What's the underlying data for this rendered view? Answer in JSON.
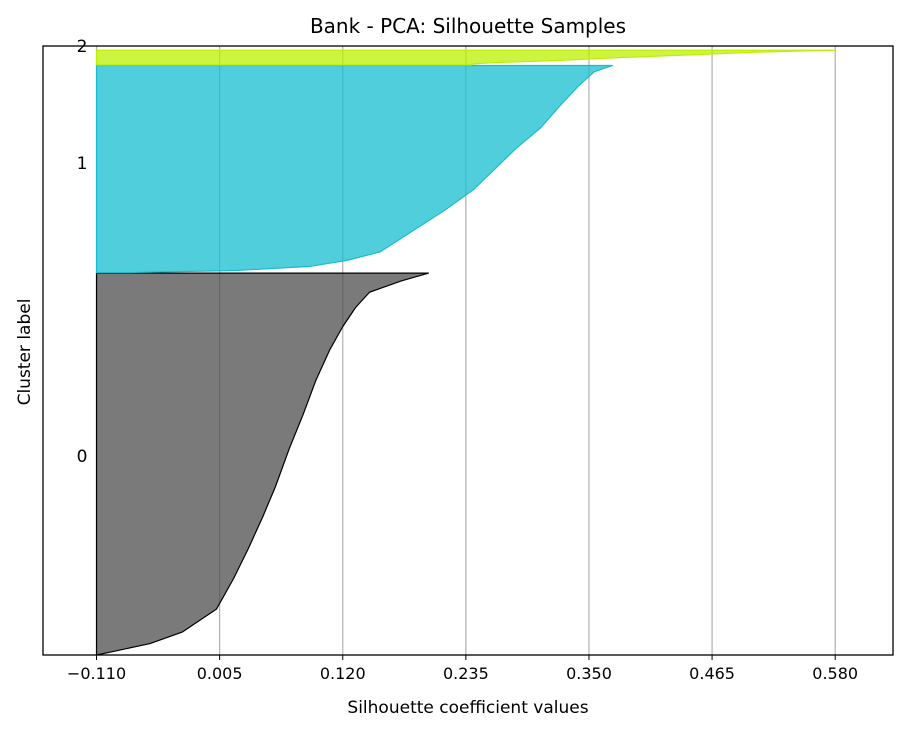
{
  "chart_data": {
    "type": "area",
    "title": "Bank - PCA: Silhouette Samples",
    "xlabel": "Silhouette coefficient values",
    "ylabel": "Cluster label",
    "xlim": [
      -0.16,
      0.634
    ],
    "x_ticks": [
      "−0.110",
      "0.005",
      "0.120",
      "0.235",
      "0.350",
      "0.465",
      "0.580"
    ],
    "x_tick_values": [
      -0.11,
      0.005,
      0.12,
      0.235,
      0.35,
      0.465,
      0.58
    ],
    "grid": "vertical",
    "y_total_samples": 1000,
    "clusters": [
      {
        "label": "0",
        "color": "#4d4d4d",
        "edge_color": "#000000",
        "y_start": 0,
        "y_end": 627,
        "label_y": 327,
        "profile": [
          [
            0,
            0.2
          ],
          [
            0.02,
            0.175
          ],
          [
            0.05,
            0.145
          ],
          [
            0.09,
            0.132
          ],
          [
            0.14,
            0.12
          ],
          [
            0.2,
            0.108
          ],
          [
            0.28,
            0.095
          ],
          [
            0.37,
            0.083
          ],
          [
            0.46,
            0.07
          ],
          [
            0.56,
            0.057
          ],
          [
            0.64,
            0.045
          ],
          [
            0.72,
            0.032
          ],
          [
            0.8,
            0.018
          ],
          [
            0.88,
            0.002
          ],
          [
            0.94,
            -0.03
          ],
          [
            0.97,
            -0.06
          ],
          [
            0.99,
            -0.093
          ],
          [
            1.0,
            -0.11
          ]
        ]
      },
      {
        "label": "1",
        "color": "#17becf",
        "edge_color": "#17becf",
        "y_start": 628,
        "y_end": 968,
        "label_y": 808,
        "profile": [
          [
            0,
            0.372
          ],
          [
            0.03,
            0.355
          ],
          [
            0.1,
            0.34
          ],
          [
            0.2,
            0.322
          ],
          [
            0.3,
            0.305
          ],
          [
            0.4,
            0.282
          ],
          [
            0.5,
            0.262
          ],
          [
            0.6,
            0.242
          ],
          [
            0.7,
            0.215
          ],
          [
            0.8,
            0.185
          ],
          [
            0.85,
            0.17
          ],
          [
            0.9,
            0.155
          ],
          [
            0.94,
            0.125
          ],
          [
            0.97,
            0.09
          ],
          [
            0.99,
            0.02
          ],
          [
            1.0,
            -0.08
          ]
        ]
      },
      {
        "label": "2",
        "color": "#bcf000",
        "edge_color": "#bcf000",
        "y_start": 969,
        "y_end": 993,
        "label_y": 1000,
        "profile": [
          [
            0,
            0.58
          ],
          [
            0.05,
            0.545
          ],
          [
            0.15,
            0.5
          ],
          [
            0.3,
            0.45
          ],
          [
            0.5,
            0.38
          ],
          [
            0.7,
            0.32
          ],
          [
            0.85,
            0.26
          ],
          [
            0.95,
            0.24
          ],
          [
            1.0,
            0.24
          ]
        ]
      }
    ]
  }
}
